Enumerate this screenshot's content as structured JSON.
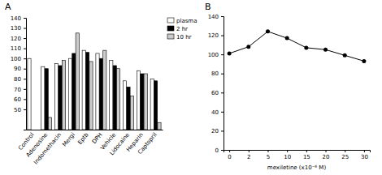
{
  "chart_data": [
    {
      "type": "bar",
      "title": "A",
      "categories": [
        "Control",
        "Adenosine",
        "Indomethacin",
        "Mergi",
        "Eptb",
        "DPH",
        "Vehicle",
        "Lidocaine",
        "Heparin",
        "Captopril"
      ],
      "series": [
        {
          "name": "plasma",
          "color": "#ffffff",
          "values": [
            100,
            92,
            95,
            100,
            108,
            105,
            98,
            78,
            88,
            80
          ]
        },
        {
          "name": "2 hr",
          "color": "#000000",
          "values": [
            null,
            90,
            93,
            105,
            106,
            100,
            93,
            72,
            85,
            78
          ]
        },
        {
          "name": "10 hr",
          "color": "#cccccc",
          "values": [
            null,
            42,
            98,
            125,
            97,
            108,
            90,
            63,
            85,
            37
          ]
        }
      ],
      "ylim": [
        30,
        140
      ],
      "yticks": [
        50,
        60,
        70,
        80,
        90,
        100,
        110,
        120,
        130,
        140
      ],
      "grid": false,
      "legend": "top-right"
    },
    {
      "type": "line",
      "title": "B",
      "x_label": "mexiletine (x10⁻⁶ M)",
      "categories": [
        "0",
        "2",
        "5",
        "10",
        "15",
        "20",
        "25",
        "30"
      ],
      "series": [
        {
          "name": "mexiletine",
          "color": "#000000",
          "marker": "circle",
          "values": [
            101,
            108,
            124,
            117,
            107,
            105,
            99,
            93
          ]
        }
      ],
      "ylim": [
        0,
        140
      ],
      "yticks": [
        0,
        20,
        40,
        60,
        80,
        100,
        120,
        140
      ],
      "grid": false
    }
  ]
}
